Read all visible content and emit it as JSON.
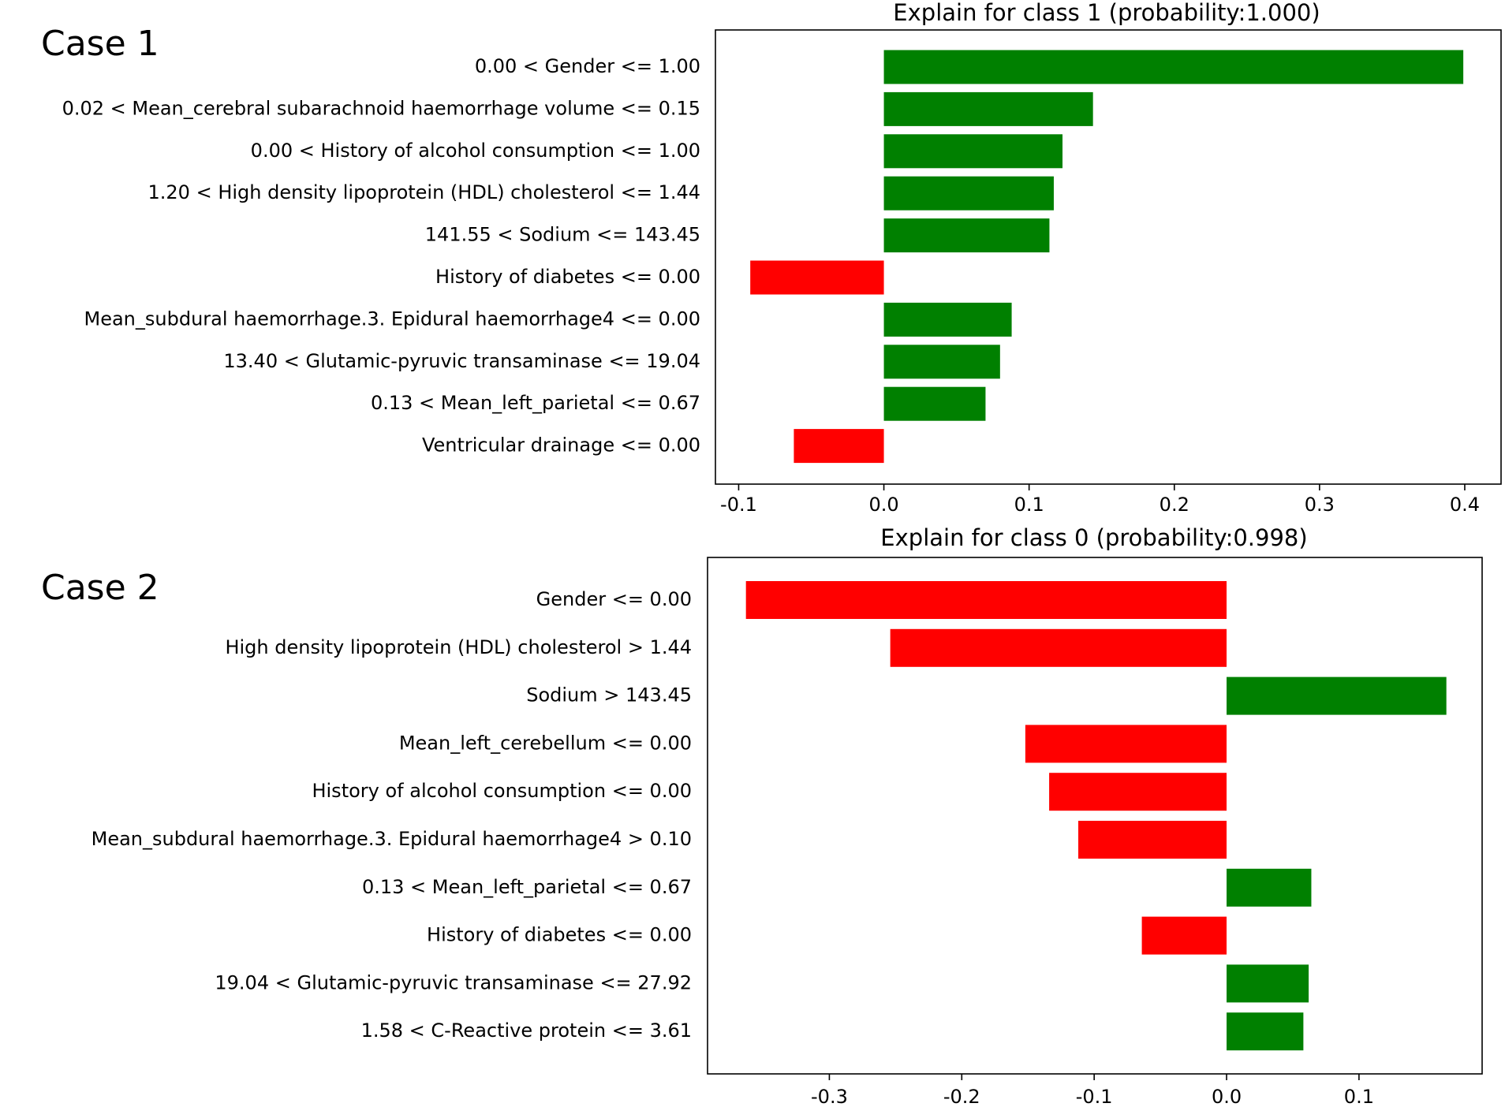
{
  "chart_data": [
    {
      "type": "bar",
      "orientation": "horizontal",
      "case_label": "Case 1",
      "title": "Explain for class 1 (probability:1.000)",
      "categories": [
        "0.00 < Gender <= 1.00",
        "0.02 < Mean_cerebral subarachnoid haemorrhage volume <= 0.15",
        "0.00 < History of alcohol consumption <= 1.00",
        "1.20 < High density lipoprotein (HDL) cholesterol <= 1.44",
        "141.55 < Sodium <= 143.45",
        "History of diabetes <= 0.00",
        "Mean_subdural haemorrhage.3. Epidural haemorrhage4 <= 0.00",
        "13.40 < Glutamic-pyruvic transaminase <= 19.04",
        "0.13 < Mean_left_parietal <= 0.67",
        "Ventricular drainage <= 0.00"
      ],
      "values": [
        0.399,
        0.144,
        0.123,
        0.117,
        0.114,
        -0.092,
        0.088,
        0.08,
        0.07,
        -0.062
      ],
      "xlim": [
        -0.116,
        0.425
      ],
      "xticks": [
        -0.1,
        0.0,
        0.1,
        0.2,
        0.3,
        0.4
      ],
      "xtick_labels": [
        "-0.1",
        "0.0",
        "0.1",
        "0.2",
        "0.3",
        "0.4"
      ],
      "positive_color": "#008000",
      "negative_color": "#ff0000"
    },
    {
      "type": "bar",
      "orientation": "horizontal",
      "case_label": "Case 2",
      "title": "Explain for class 0 (probability:0.998)",
      "categories": [
        "Gender <= 0.00",
        "High density lipoprotein (HDL) cholesterol > 1.44",
        "Sodium > 143.45",
        "Mean_left_cerebellum <= 0.00",
        "History of alcohol consumption <= 0.00",
        "Mean_subdural haemorrhage.3. Epidural haemorrhage4 > 0.10",
        "0.13 < Mean_left_parietal <= 0.67",
        "History of diabetes <= 0.00",
        "19.04 < Glutamic-pyruvic transaminase <= 27.92",
        "1.58 < C-Reactive protein <= 3.61"
      ],
      "values": [
        -0.363,
        -0.254,
        0.166,
        -0.152,
        -0.134,
        -0.112,
        0.064,
        -0.064,
        0.062,
        0.058
      ],
      "xlim": [
        -0.392,
        0.193
      ],
      "xticks": [
        -0.3,
        -0.2,
        -0.1,
        0.0,
        0.1
      ],
      "xtick_labels": [
        "-0.3",
        "-0.2",
        "-0.1",
        "0.0",
        "0.1"
      ],
      "positive_color": "#008000",
      "negative_color": "#ff0000"
    }
  ]
}
